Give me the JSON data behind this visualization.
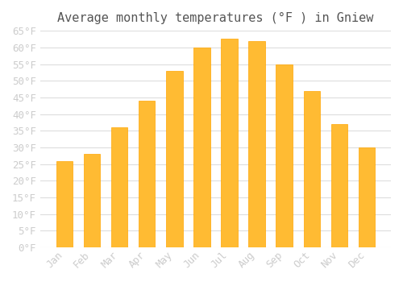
{
  "title": "Average monthly temperatures (°F ) in Gniew",
  "months": [
    "Jan",
    "Feb",
    "Mar",
    "Apr",
    "May",
    "Jun",
    "Jul",
    "Aug",
    "Sep",
    "Oct",
    "Nov",
    "Dec"
  ],
  "values": [
    26,
    28,
    36,
    44,
    53,
    60,
    62.5,
    62,
    55,
    47,
    37,
    30
  ],
  "bar_color": "#FFBB33",
  "bar_edge_color": "#FFA500",
  "background_color": "#FFFFFF",
  "grid_color": "#DDDDDD",
  "text_color": "#CCCCCC",
  "ylim": [
    0,
    65
  ],
  "yticks": [
    0,
    5,
    10,
    15,
    20,
    25,
    30,
    35,
    40,
    45,
    50,
    55,
    60,
    65
  ],
  "title_fontsize": 11,
  "tick_fontsize": 9
}
